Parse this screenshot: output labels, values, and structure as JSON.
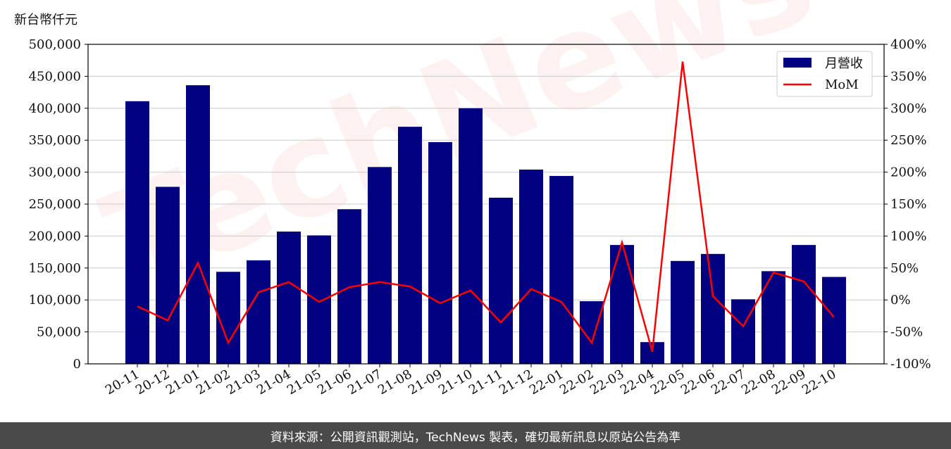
{
  "y_unit_label": "新台幣仟元",
  "footer_text": "資料來源：公開資訊觀測站，TechNews 製表，確切最新訊息以原站公告為準",
  "watermark_text": "TechNews",
  "colors": {
    "bar": "#000080",
    "line": "#ff0000",
    "grid": "#cccccc",
    "footer_bg": "#4a4a4a"
  },
  "chart_data": {
    "type": "bar",
    "categories": [
      "20-11",
      "20-12",
      "21-01",
      "21-02",
      "21-03",
      "21-04",
      "21-05",
      "21-06",
      "21-07",
      "21-08",
      "21-09",
      "21-10",
      "21-11",
      "21-12",
      "22-01",
      "22-02",
      "22-03",
      "22-04",
      "22-05",
      "22-06",
      "22-07",
      "22-08",
      "22-09",
      "22-10"
    ],
    "series": [
      {
        "name": "月營收",
        "type": "bar",
        "axis": "left",
        "values": [
          411000,
          277000,
          436000,
          144000,
          162000,
          207000,
          201000,
          242000,
          308000,
          371000,
          347000,
          400000,
          260000,
          304000,
          294000,
          98000,
          186000,
          34000,
          161000,
          172000,
          101000,
          145000,
          186000,
          136000
        ]
      },
      {
        "name": "MoM",
        "type": "line",
        "axis": "right",
        "values": [
          -10,
          -32,
          58,
          -67,
          12,
          28,
          -3,
          20,
          28,
          21,
          -5,
          15,
          -35,
          17,
          -3,
          -67,
          90,
          -81,
          373,
          6,
          -41,
          43,
          29,
          -27
        ]
      }
    ],
    "y_left": {
      "min": 0,
      "max": 500000,
      "ticks": [
        "0",
        "50,000",
        "100,000",
        "150,000",
        "200,000",
        "250,000",
        "300,000",
        "350,000",
        "400,000",
        "450,000",
        "500,000"
      ]
    },
    "y_right": {
      "min": -100,
      "max": 400,
      "ticks": [
        "-100%",
        "-50%",
        "0%",
        "50%",
        "100%",
        "150%",
        "200%",
        "250%",
        "300%",
        "350%",
        "400%"
      ]
    },
    "grid": "horizontal",
    "legend_position": "top-right"
  }
}
